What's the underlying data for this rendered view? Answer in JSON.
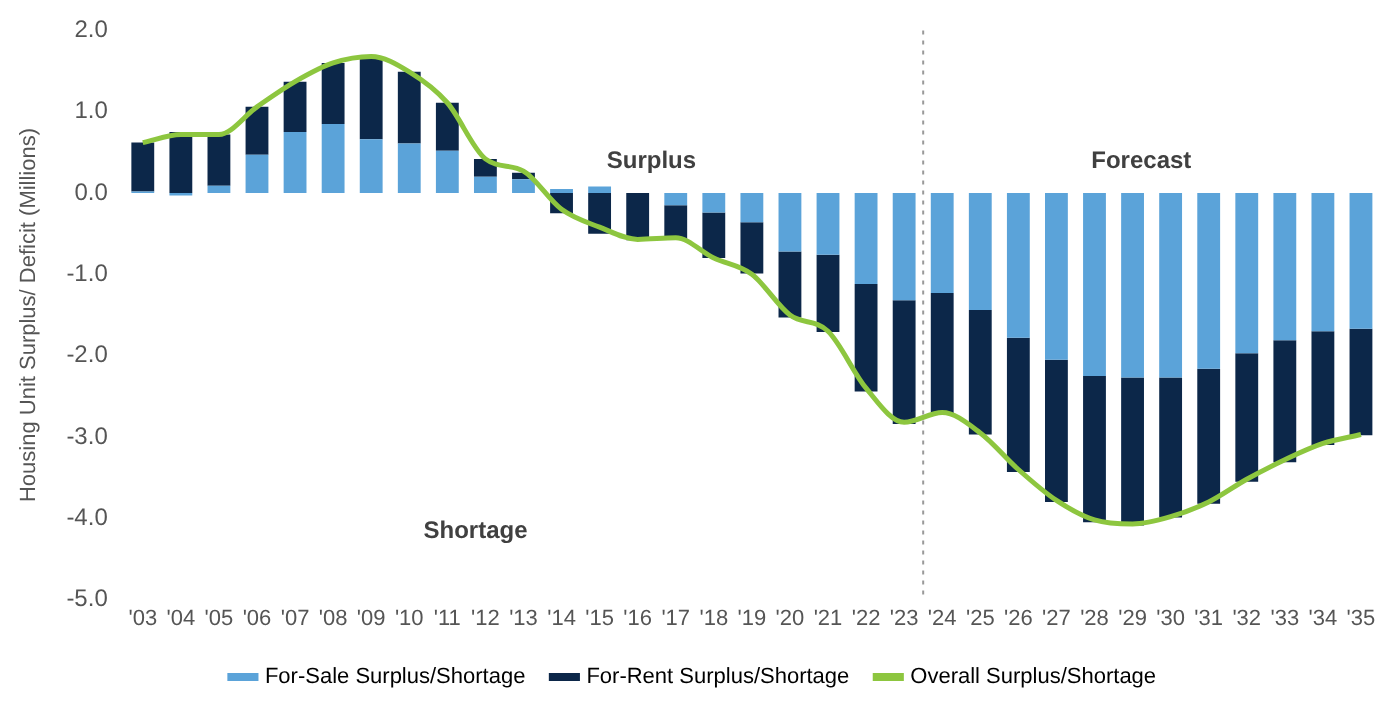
{
  "chart_data": {
    "type": "bar",
    "stacked": true,
    "ylabel": "Housing Unit Surplus/ Deficit (Millions)",
    "categories": [
      "'03",
      "'04",
      "'05",
      "'06",
      "'07",
      "'08",
      "'09",
      "'10",
      "'11",
      "'12",
      "'13",
      "'14",
      "'15",
      "'16",
      "'17",
      "'18",
      "'19",
      "'20",
      "'21",
      "'22",
      "'23",
      "'24",
      "'25",
      "'26",
      "'27",
      "'28",
      "'29",
      "'30",
      "'31",
      "'32",
      "'33",
      "'34",
      "'35"
    ],
    "series": [
      {
        "name": "For-Sale Surplus/Shortage",
        "color": "#5ba3d9",
        "values": [
          0.02,
          -0.03,
          0.09,
          0.47,
          0.75,
          0.85,
          0.66,
          0.61,
          0.52,
          0.2,
          0.17,
          0.05,
          0.08,
          0,
          -0.15,
          -0.24,
          -0.36,
          -0.72,
          -0.76,
          -1.12,
          -1.32,
          -1.23,
          -1.44,
          -1.78,
          -2.05,
          -2.25,
          -2.27,
          -2.27,
          -2.16,
          -1.97,
          -1.81,
          -1.7,
          -1.67
        ]
      },
      {
        "name": "For-Rent Surplus/Shortage",
        "color": "#0c2749",
        "values": [
          0.6,
          0.75,
          0.63,
          0.59,
          0.62,
          0.75,
          1.02,
          0.88,
          0.59,
          0.22,
          0.08,
          -0.25,
          -0.5,
          -0.58,
          -0.42,
          -0.56,
          -0.63,
          -0.81,
          -0.95,
          -1.32,
          -1.52,
          -1.48,
          -1.53,
          -1.65,
          -1.75,
          -1.8,
          -1.82,
          -1.72,
          -1.66,
          -1.58,
          -1.5,
          -1.4,
          -1.31
        ]
      },
      {
        "name": "Overall Surplus/Shortage",
        "type": "line",
        "color": "#8dc63f",
        "values": [
          0.62,
          0.72,
          0.72,
          1.06,
          1.37,
          1.6,
          1.68,
          1.49,
          1.11,
          0.42,
          0.27,
          -0.2,
          -0.42,
          -0.57,
          -0.55,
          -0.8,
          -1.0,
          -1.5,
          -1.7,
          -2.4,
          -2.82,
          -2.7,
          -2.95,
          -3.4,
          -3.78,
          -4.02,
          -4.07,
          -3.98,
          -3.8,
          -3.52,
          -3.28,
          -3.08,
          -2.97
        ]
      }
    ],
    "ylim": [
      -5,
      2
    ],
    "yticks": [
      {
        "value": -5,
        "label": "-5.0"
      },
      {
        "value": -4,
        "label": "-4.0"
      },
      {
        "value": -3,
        "label": "-3.0"
      },
      {
        "value": -2,
        "label": "-2.0"
      },
      {
        "value": -1,
        "label": "-1.0"
      },
      {
        "value": 0,
        "label": "0.0"
      },
      {
        "value": 1,
        "label": "1.0"
      },
      {
        "value": 2,
        "label": "2.0"
      }
    ],
    "annotations": [
      "Surplus",
      "Forecast",
      "Shortage"
    ],
    "legend": "bottom",
    "grid": false,
    "marker": "none"
  }
}
